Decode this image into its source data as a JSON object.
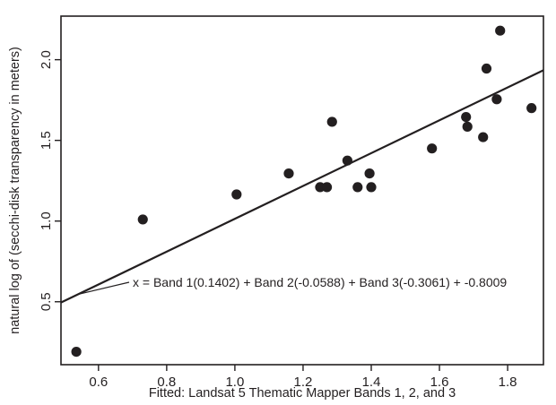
{
  "chart_data": {
    "type": "scatter",
    "title": "",
    "xlabel": "Fitted: Landsat 5 Thematic Mapper Bands 1, 2, and 3",
    "ylabel": "natural log of (secchi-disk transparency in meters)",
    "xlim": [
      0.49,
      1.905
    ],
    "ylim": [
      0.11,
      2.27
    ],
    "xticks": [
      0.6,
      0.8,
      1.0,
      1.2,
      1.4,
      1.6,
      1.8
    ],
    "yticks": [
      0.5,
      1.0,
      1.5,
      2.0
    ],
    "xtick_labels": [
      "0.6",
      "0.8",
      "1.0",
      "1.2",
      "1.4",
      "1.6",
      "1.8"
    ],
    "ytick_labels": [
      "0.5",
      "1.0",
      "1.5",
      "2.0"
    ],
    "grid": false,
    "series": [
      {
        "points": [
          {
            "x": 0.535,
            "y": 0.19
          },
          {
            "x": 0.73,
            "y": 1.01
          },
          {
            "x": 1.005,
            "y": 1.165
          },
          {
            "x": 1.158,
            "y": 1.295
          },
          {
            "x": 1.25,
            "y": 1.21
          },
          {
            "x": 1.27,
            "y": 1.21
          },
          {
            "x": 1.285,
            "y": 1.615
          },
          {
            "x": 1.33,
            "y": 1.375
          },
          {
            "x": 1.36,
            "y": 1.21
          },
          {
            "x": 1.395,
            "y": 1.295
          },
          {
            "x": 1.4,
            "y": 1.21
          },
          {
            "x": 1.578,
            "y": 1.45
          },
          {
            "x": 1.678,
            "y": 1.645
          },
          {
            "x": 1.682,
            "y": 1.585
          },
          {
            "x": 1.728,
            "y": 1.52
          },
          {
            "x": 1.738,
            "y": 1.945
          },
          {
            "x": 1.768,
            "y": 1.755
          },
          {
            "x": 1.778,
            "y": 2.18
          },
          {
            "x": 1.87,
            "y": 1.7
          }
        ]
      }
    ],
    "fit_line": {
      "x": [
        0.49,
        1.905
      ],
      "y": [
        0.495,
        1.935
      ]
    },
    "annotation": {
      "text": "x = Band 1(0.1402) + Band 2(-0.0588) + Band 3(-0.3061) + -0.8009",
      "target": {
        "x": 0.538,
        "y": 0.545
      }
    },
    "colors": {
      "ink": "#231f20",
      "marker": "#231f20"
    }
  }
}
